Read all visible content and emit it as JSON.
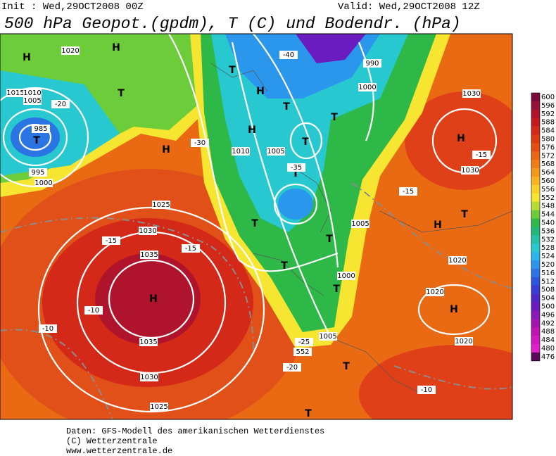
{
  "header": {
    "init": "Init : Wed,29OCT2008 00Z",
    "valid": "Valid: Wed,29OCT2008 12Z",
    "title": "500 hPa Geopot.(gpdm), T (C) und Bodendr. (hPa)"
  },
  "colorbar": {
    "ticks": [
      600,
      596,
      592,
      588,
      584,
      580,
      576,
      572,
      568,
      564,
      560,
      556,
      552,
      548,
      544,
      540,
      536,
      532,
      528,
      524,
      520,
      516,
      512,
      508,
      504,
      500,
      496,
      492,
      488,
      484,
      480,
      476
    ],
    "colors": [
      "#7a0a3a",
      "#96103a",
      "#b0142c",
      "#c41a1e",
      "#d42818",
      "#de3a14",
      "#e44e12",
      "#ea6612",
      "#f07e16",
      "#f4981a",
      "#f8b420",
      "#fad02a",
      "#f6e632",
      "#b6dc34",
      "#6ccc3a",
      "#2eb848",
      "#22b878",
      "#24c0a8",
      "#28c8d0",
      "#2ab6e8",
      "#2a96ec",
      "#2a74e4",
      "#2c56dc",
      "#3a3cd4",
      "#5028c8",
      "#6a1cc0",
      "#8a18b8",
      "#a414b0",
      "#c014b4",
      "#d418c0",
      "#e020cc",
      "#5a0a5a"
    ]
  },
  "map": {
    "labels": [
      "H",
      "H",
      "T",
      "H",
      "H",
      "T",
      "H",
      "T",
      "H",
      "T",
      "T",
      "T",
      "T",
      "T",
      "T",
      "T",
      "T",
      "T",
      "H",
      "H",
      "T",
      "H",
      "T",
      "1035",
      "1030",
      "1025",
      "1020",
      "1015",
      "1010",
      "1005",
      "1000",
      "995",
      "985",
      "1030",
      "1025",
      "1035",
      "-10",
      "-10",
      "-15",
      "-15",
      "-20",
      "-30",
      "-40",
      "-35",
      "990",
      "1000",
      "1005",
      "1010",
      "1005",
      "1000",
      "1020",
      "1020",
      "1030",
      "1030",
      "-15",
      "-15",
      "-10",
      "1020",
      "1005",
      "-25",
      "-20",
      "552"
    ]
  },
  "footer": {
    "lines": [
      "Daten: GFS-Modell des amerikanischen Wetterdienstes",
      "(C) Wetterzentrale",
      "www.wetterzentrale.de"
    ]
  }
}
